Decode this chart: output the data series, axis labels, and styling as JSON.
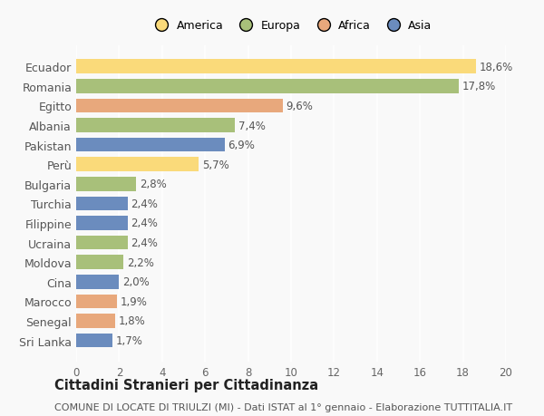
{
  "countries": [
    "Ecuador",
    "Romania",
    "Egitto",
    "Albania",
    "Pakistan",
    "Perù",
    "Bulgaria",
    "Turchia",
    "Filippine",
    "Ucraina",
    "Moldova",
    "Cina",
    "Marocco",
    "Senegal",
    "Sri Lanka"
  ],
  "values": [
    18.6,
    17.8,
    9.6,
    7.4,
    6.9,
    5.7,
    2.8,
    2.4,
    2.4,
    2.4,
    2.2,
    2.0,
    1.9,
    1.8,
    1.7
  ],
  "labels": [
    "18,6%",
    "17,8%",
    "9,6%",
    "7,4%",
    "6,9%",
    "5,7%",
    "2,8%",
    "2,4%",
    "2,4%",
    "2,4%",
    "2,2%",
    "2,0%",
    "1,9%",
    "1,8%",
    "1,7%"
  ],
  "continents": [
    "America",
    "Europa",
    "Africa",
    "Europa",
    "Asia",
    "America",
    "Europa",
    "Asia",
    "Asia",
    "Europa",
    "Europa",
    "Asia",
    "Africa",
    "Africa",
    "Asia"
  ],
  "colors": {
    "America": "#FADA7A",
    "Europa": "#A8C07A",
    "Africa": "#E8A87C",
    "Asia": "#6B8CBE"
  },
  "xlim": [
    0,
    20
  ],
  "xticks": [
    0,
    2,
    4,
    6,
    8,
    10,
    12,
    14,
    16,
    18,
    20
  ],
  "title": "Cittadini Stranieri per Cittadinanza",
  "subtitle": "COMUNE DI LOCATE DI TRIULZI (MI) - Dati ISTAT al 1° gennaio - Elaborazione TUTTITALIA.IT",
  "background_color": "#f9f9f9",
  "grid_color": "#ffffff",
  "bar_height": 0.72,
  "label_fontsize": 8.5,
  "ytick_fontsize": 9,
  "xtick_fontsize": 8.5,
  "title_fontsize": 10.5,
  "subtitle_fontsize": 8,
  "legend_order": [
    "America",
    "Europa",
    "Africa",
    "Asia"
  ]
}
